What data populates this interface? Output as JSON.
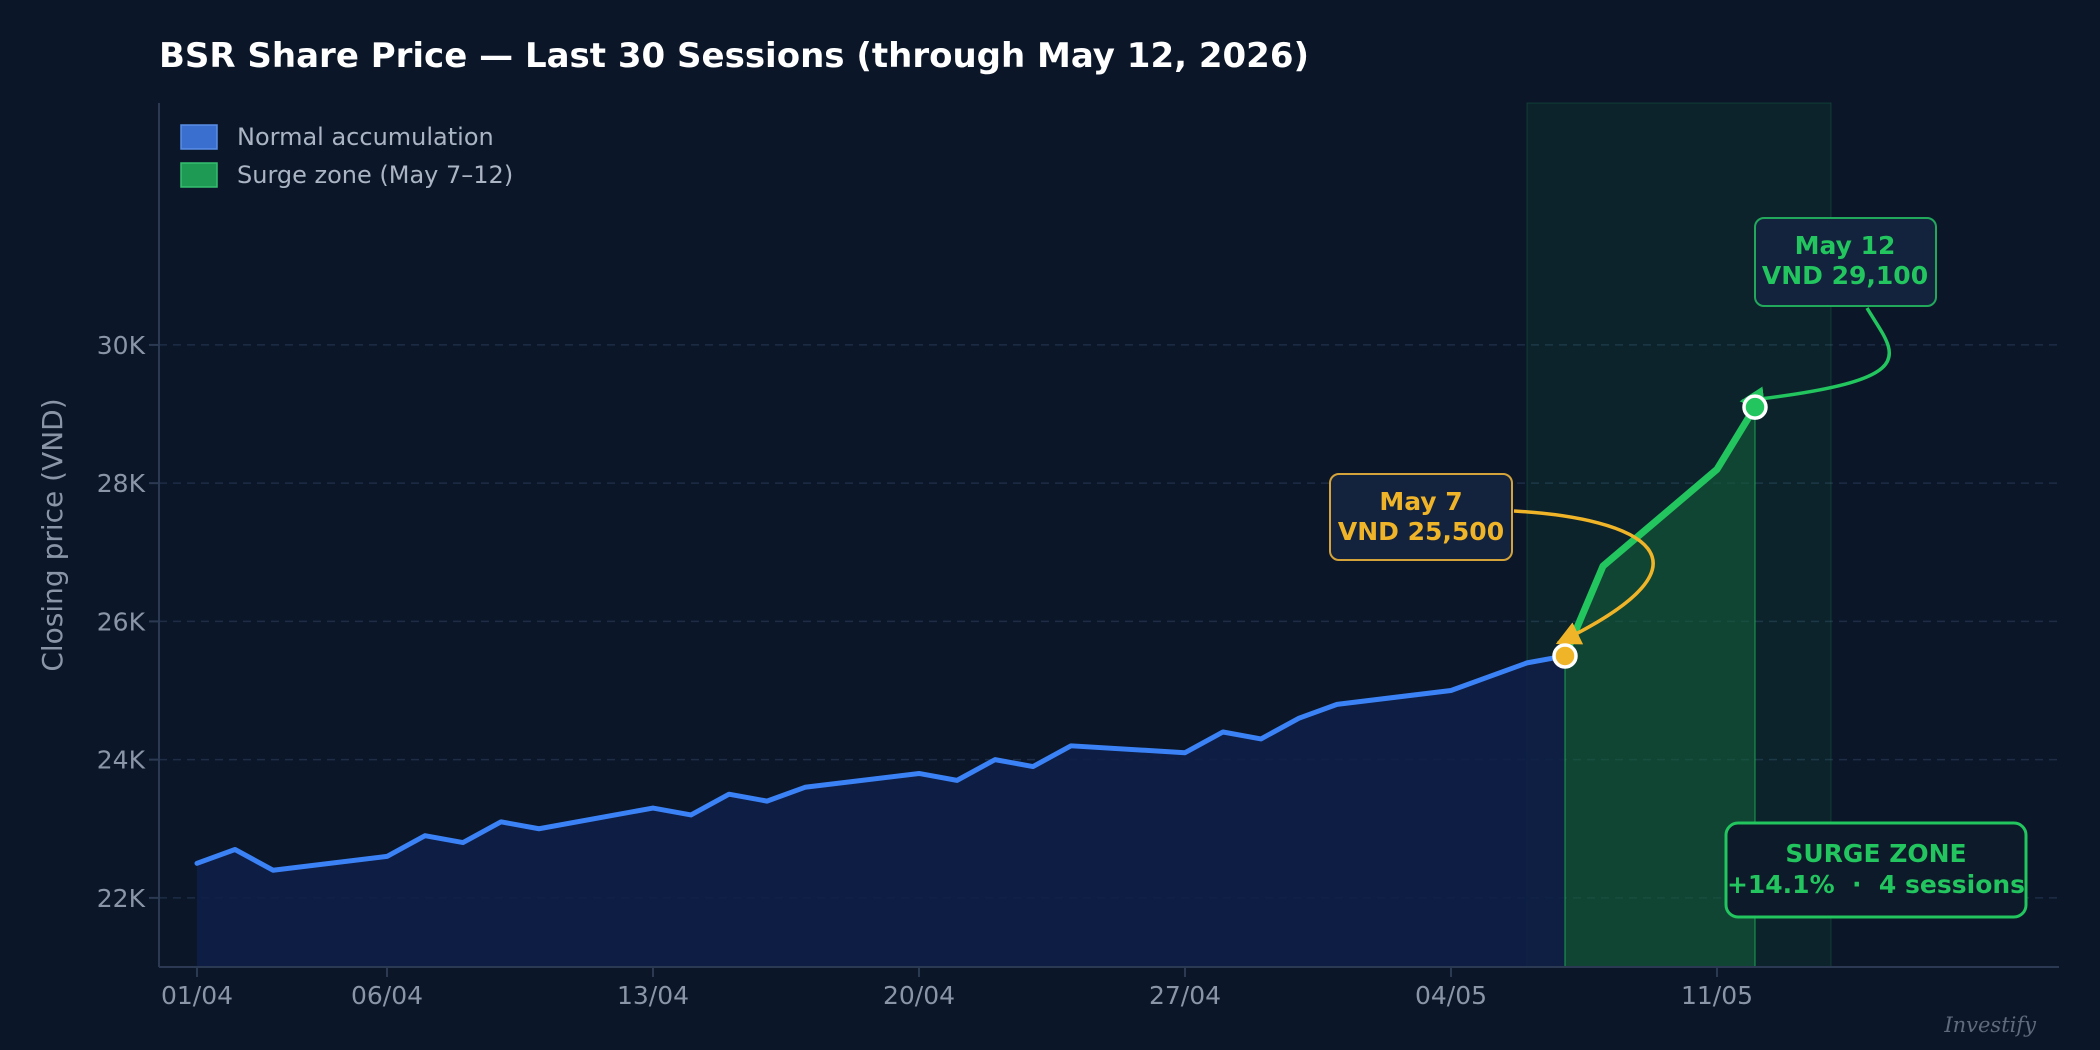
{
  "chart_data": {
    "type": "line",
    "title": "BSR Share Price — Last 30 Sessions (through May 12, 2026)",
    "ylabel": "Closing price (VND)",
    "xlabel": "",
    "ylim": [
      21000,
      33500
    ],
    "yticks": [
      22000,
      24000,
      26000,
      28000,
      30000
    ],
    "ytick_labels": [
      "22K",
      "24K",
      "26K",
      "28K",
      "30K"
    ],
    "xlim": [
      "2026-03-31",
      "2026-05-20"
    ],
    "xticks": [
      "2026-04-01",
      "2026-04-06",
      "2026-04-13",
      "2026-04-20",
      "2026-04-27",
      "2026-05-04",
      "2026-05-11"
    ],
    "xtick_labels": [
      "01/04",
      "06/04",
      "13/04",
      "20/04",
      "27/04",
      "04/05",
      "11/05"
    ],
    "grid": true,
    "legend_position": "top-left",
    "legend": [
      {
        "label": "Normal accumulation",
        "color": "#3a6fd0"
      },
      {
        "label": "Surge zone (May 7–12)",
        "color": "#1f9a55"
      }
    ],
    "series": [
      {
        "name": "Normal accumulation",
        "color": "#3b82f6",
        "x": [
          "2026-04-01",
          "2026-04-02",
          "2026-04-03",
          "2026-04-06",
          "2026-04-07",
          "2026-04-08",
          "2026-04-09",
          "2026-04-10",
          "2026-04-13",
          "2026-04-14",
          "2026-04-15",
          "2026-04-16",
          "2026-04-17",
          "2026-04-20",
          "2026-04-21",
          "2026-04-22",
          "2026-04-23",
          "2026-04-24",
          "2026-04-27",
          "2026-04-28",
          "2026-04-29",
          "2026-04-30",
          "2026-05-01",
          "2026-05-04",
          "2026-05-05",
          "2026-05-06",
          "2026-05-07"
        ],
        "y": [
          22500,
          22700,
          22400,
          22600,
          22900,
          22800,
          23100,
          23000,
          23300,
          23200,
          23500,
          23400,
          23600,
          23800,
          23700,
          24000,
          23900,
          24200,
          24100,
          24400,
          24300,
          24600,
          24800,
          25000,
          25200,
          25400,
          25500
        ]
      },
      {
        "name": "Surge zone (May 7–12)",
        "color": "#22c55e",
        "x": [
          "2026-05-07",
          "2026-05-08",
          "2026-05-11",
          "2026-05-12"
        ],
        "y": [
          25500,
          26800,
          28200,
          29100
        ]
      }
    ],
    "surge_band": {
      "start": "2026-05-06",
      "end": "2026-05-14",
      "color": "#1f9a55"
    },
    "annotations": [
      {
        "id": "may7",
        "line1": "May 7",
        "line2": "VND 25,500",
        "x": "2026-05-07",
        "y": 25500,
        "color": "#f0b429"
      },
      {
        "id": "may12",
        "line1": "May 12",
        "line2": "VND 29,100",
        "x": "2026-05-12",
        "y": 29100,
        "color": "#22c55e"
      }
    ],
    "surge_box": {
      "line1": "SURGE ZONE",
      "line2": "+14.1%  ·  4 sessions",
      "color": "#22c55e"
    },
    "watermark": "Investify"
  }
}
